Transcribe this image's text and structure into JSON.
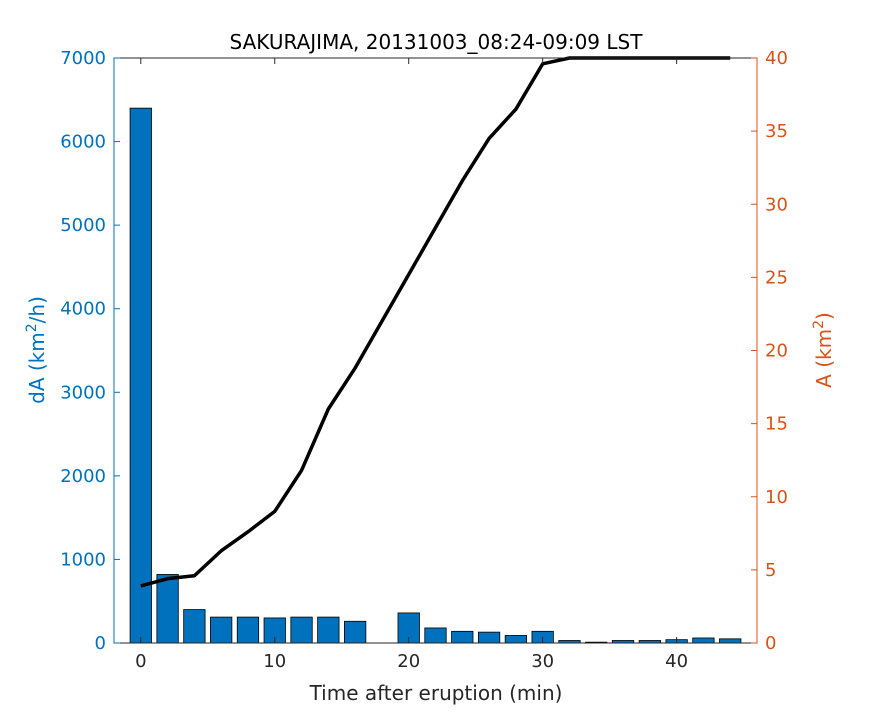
{
  "chart_data": {
    "type": "bar+line",
    "title": "SAKURAJIMA, 20131003_08:24-09:09 LST",
    "xlabel": "Time after eruption (min)",
    "ylabel_left": {
      "base": "dA (km",
      "sup": "2",
      "rest": "/h)"
    },
    "ylabel_right": {
      "base": "A (km",
      "sup": "2",
      "rest": ")"
    },
    "xlim": [
      -2,
      46
    ],
    "xticks": [
      0,
      10,
      20,
      30,
      40
    ],
    "ylim_left": [
      0,
      7000
    ],
    "yticks_left": [
      0,
      1000,
      2000,
      3000,
      4000,
      5000,
      6000,
      7000
    ],
    "ylim_right": [
      0,
      40
    ],
    "yticks_right": [
      0,
      5,
      10,
      15,
      20,
      25,
      30,
      35,
      40
    ],
    "colors": {
      "left_axis": "#0072BD",
      "right_axis": "#D95319",
      "bars": "#0072BD",
      "line": "#000000"
    },
    "bars": {
      "axis": "left",
      "x": [
        0,
        2,
        4,
        6,
        8,
        10,
        12,
        14,
        16,
        18,
        20,
        22,
        24,
        26,
        28,
        30,
        32,
        34,
        36,
        38,
        40,
        42,
        44
      ],
      "values": [
        6400,
        820,
        400,
        310,
        310,
        300,
        310,
        310,
        260,
        0,
        360,
        180,
        140,
        130,
        90,
        140,
        30,
        10,
        30,
        30,
        40,
        60,
        50
      ]
    },
    "line": {
      "axis": "right",
      "x": [
        0,
        2,
        4,
        6,
        8,
        10,
        12,
        14,
        16,
        18,
        20,
        22,
        24,
        26,
        28,
        30,
        32,
        34,
        36,
        38,
        40,
        42,
        44
      ],
      "y": [
        3.9,
        4.4,
        4.6,
        6.3,
        7.6,
        9.0,
        11.8,
        16.0,
        18.8,
        22.0,
        25.2,
        28.4,
        31.6,
        34.5,
        36.5,
        39.6,
        40,
        40,
        40,
        40,
        40,
        40,
        40
      ]
    }
  }
}
